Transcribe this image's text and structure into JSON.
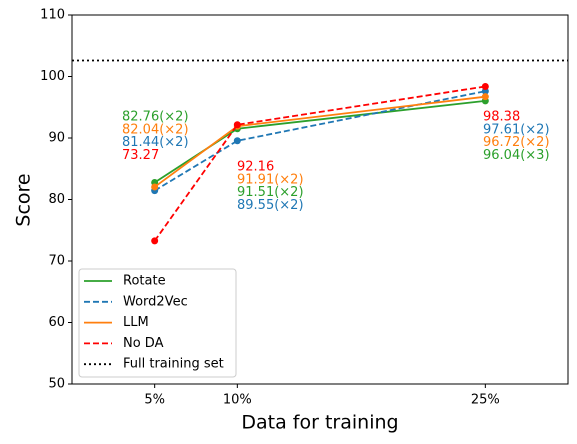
{
  "chart_data": {
    "type": "line",
    "xlabel": "Data for training",
    "ylabel": "Score",
    "x": [
      5,
      10,
      25
    ],
    "xlim": [
      0,
      30
    ],
    "xticks": [
      {
        "value": 5,
        "label": "5%"
      },
      {
        "value": 10,
        "label": "10%"
      },
      {
        "value": 25,
        "label": "25%"
      }
    ],
    "ylim": [
      50,
      110
    ],
    "yticks": [
      50,
      60,
      70,
      80,
      90,
      100,
      110
    ],
    "legend": "lower left",
    "series": [
      {
        "name": "Rotate",
        "color": "#2ca02c",
        "dash": "solid",
        "values": [
          82.76,
          91.51,
          96.04
        ],
        "value_labels": [
          "82.76(×2)",
          "91.51(×2)",
          "96.04(×3)"
        ]
      },
      {
        "name": "Word2Vec",
        "color": "#1f77b4",
        "dash": "dashed",
        "values": [
          81.44,
          89.55,
          97.61
        ],
        "value_labels": [
          "81.44(×2)",
          "89.55(×2)",
          "97.61(×2)"
        ]
      },
      {
        "name": "LLM",
        "color": "#ff7f0e",
        "dash": "solid",
        "values": [
          82.04,
          91.91,
          96.72
        ],
        "value_labels": [
          "82.04(×2)",
          "91.91(×2)",
          "96.72(×2)"
        ]
      },
      {
        "name": "No DA",
        "color": "#ff0000",
        "dash": "dashed",
        "values": [
          73.27,
          92.16,
          98.38
        ],
        "value_labels": [
          "73.27",
          "92.16",
          "98.38"
        ]
      }
    ],
    "reference": {
      "name": "Full training set",
      "color": "#000000",
      "dash": "dotted",
      "value": 102.6
    }
  }
}
